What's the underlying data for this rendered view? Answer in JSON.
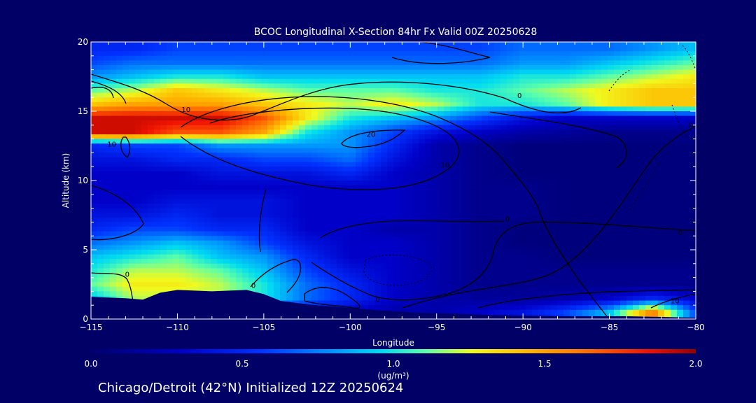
{
  "chart_data": {
    "type": "heatmap",
    "title": "BCOC Longitudinal X-Section 84hr  Fx Valid 00Z 20250628",
    "xlabel": "Longitude",
    "ylabel": "Altitude (km)",
    "xlim": [
      -115,
      -80
    ],
    "ylim": [
      0,
      20
    ],
    "x_ticks": [
      -115,
      -110,
      -105,
      -100,
      -95,
      -90,
      -85,
      -80
    ],
    "x_tick_labels": [
      "−115",
      "−110",
      "−105",
      "−100",
      "−95",
      "−90",
      "−85",
      "−80"
    ],
    "y_ticks": [
      0,
      5,
      10,
      15,
      20
    ],
    "y_tick_labels": [
      "0",
      "5",
      "10",
      "15",
      "20"
    ],
    "grid": false,
    "colorbar": {
      "min": 0.0,
      "max": 2.0,
      "ticks": [
        "0.0",
        "0.5",
        "1.0",
        "1.5",
        "2.0"
      ],
      "unit": "(ug/m³)"
    },
    "value_grid": {
      "x": [
        -115,
        -112.5,
        -110,
        -107.5,
        -105,
        -102.5,
        -100,
        -97.5,
        -95,
        -92.5,
        -90,
        -87.5,
        -85,
        -82.5,
        -80
      ],
      "y": [
        0.5,
        1.5,
        2.5,
        3.5,
        4.5,
        5.5,
        6.5,
        7.5,
        8.5,
        9.5,
        10.5,
        11.5,
        12.5,
        13.5,
        14.5,
        15.5,
        16.5,
        17.5,
        18.5,
        19.5
      ],
      "z": [
        [
          0.3,
          0.4,
          0.5,
          0.5,
          0.5,
          0.4,
          0.3,
          0.2,
          0.2,
          0.3,
          0.4,
          0.6,
          0.9,
          1.6,
          0.6
        ],
        [
          0.9,
          1.2,
          1.2,
          1.2,
          1.0,
          0.7,
          0.5,
          0.3,
          0.2,
          0.15,
          0.15,
          0.2,
          0.3,
          0.5,
          0.3
        ],
        [
          1.1,
          1.3,
          1.3,
          1.2,
          1.0,
          0.7,
          0.5,
          0.3,
          0.2,
          0.1,
          0.1,
          0.1,
          0.1,
          0.1,
          0.1
        ],
        [
          1.0,
          1.2,
          1.2,
          1.1,
          0.9,
          0.6,
          0.4,
          0.3,
          0.2,
          0.1,
          0.1,
          0.1,
          0.1,
          0.1,
          0.1
        ],
        [
          0.9,
          1.0,
          1.1,
          0.9,
          0.8,
          0.5,
          0.3,
          0.3,
          0.2,
          0.1,
          0.1,
          0.05,
          0.05,
          0.05,
          0.05
        ],
        [
          0.7,
          0.8,
          0.9,
          0.8,
          0.6,
          0.4,
          0.3,
          0.3,
          0.2,
          0.1,
          0.05,
          0.05,
          0.05,
          0.05,
          0.05
        ],
        [
          0.5,
          0.6,
          0.6,
          0.5,
          0.5,
          0.3,
          0.3,
          0.2,
          0.2,
          0.1,
          0.05,
          0.05,
          0.05,
          0.05,
          0.05
        ],
        [
          0.4,
          0.4,
          0.5,
          0.4,
          0.4,
          0.3,
          0.3,
          0.3,
          0.2,
          0.1,
          0.1,
          0.05,
          0.05,
          0.05,
          0.05
        ],
        [
          0.3,
          0.3,
          0.4,
          0.4,
          0.4,
          0.3,
          0.3,
          0.3,
          0.2,
          0.1,
          0.1,
          0.05,
          0.05,
          0.05,
          0.05
        ],
        [
          0.3,
          0.3,
          0.3,
          0.3,
          0.3,
          0.3,
          0.3,
          0.3,
          0.2,
          0.1,
          0.1,
          0.05,
          0.05,
          0.05,
          0.05
        ],
        [
          0.3,
          0.3,
          0.3,
          0.4,
          0.4,
          0.4,
          0.5,
          0.3,
          0.2,
          0.1,
          0.05,
          0.05,
          0.05,
          0.05,
          0.05
        ],
        [
          0.4,
          0.4,
          0.5,
          0.5,
          0.6,
          0.6,
          0.7,
          0.4,
          0.2,
          0.1,
          0.05,
          0.05,
          0.05,
          0.05,
          0.05
        ],
        [
          0.5,
          0.6,
          0.6,
          0.8,
          0.8,
          0.8,
          0.8,
          0.5,
          0.2,
          0.1,
          0.05,
          0.05,
          0.05,
          0.05,
          0.05
        ],
        [
          1.9,
          1.9,
          1.7,
          1.7,
          1.5,
          1.0,
          0.8,
          0.6,
          0.4,
          0.3,
          0.2,
          0.15,
          0.1,
          0.1,
          0.1
        ],
        [
          1.9,
          1.9,
          1.9,
          1.9,
          1.7,
          1.3,
          1.0,
          0.9,
          0.8,
          0.6,
          0.4,
          0.3,
          0.3,
          0.3,
          0.3
        ],
        [
          1.4,
          1.5,
          1.5,
          1.5,
          1.4,
          1.3,
          1.2,
          1.3,
          1.2,
          1.0,
          1.0,
          1.1,
          1.3,
          1.4,
          1.4
        ],
        [
          1.1,
          1.2,
          1.4,
          1.3,
          1.2,
          1.1,
          1.1,
          1.1,
          1.0,
          1.0,
          1.1,
          1.2,
          1.3,
          1.4,
          1.4
        ],
        [
          0.8,
          0.9,
          1.0,
          1.0,
          0.9,
          0.9,
          0.9,
          0.9,
          0.9,
          0.9,
          1.0,
          1.0,
          1.1,
          1.2,
          1.3
        ],
        [
          0.6,
          0.7,
          0.7,
          0.7,
          0.7,
          0.7,
          0.7,
          0.7,
          0.7,
          0.7,
          0.8,
          0.8,
          0.9,
          1.0,
          1.1
        ],
        [
          0.5,
          0.5,
          0.6,
          0.6,
          0.6,
          0.6,
          0.6,
          0.6,
          0.6,
          0.6,
          0.7,
          0.7,
          0.7,
          0.8,
          0.9
        ]
      ]
    },
    "contour_labels": [
      {
        "text": "10",
        "lon": -109.5,
        "alt": 15.1
      },
      {
        "text": "20",
        "lon": -98.8,
        "alt": 13.3
      },
      {
        "text": "10",
        "lon": -94.5,
        "alt": 11.1
      },
      {
        "text": "0",
        "lon": -90.2,
        "alt": 16.1
      },
      {
        "text": "10",
        "lon": -113.8,
        "alt": 12.6
      },
      {
        "text": "0",
        "lon": -112.9,
        "alt": 3.2
      },
      {
        "text": "0",
        "lon": -105.6,
        "alt": 2.4
      },
      {
        "text": "0",
        "lon": -98.4,
        "alt": 1.4
      },
      {
        "text": "0",
        "lon": -90.9,
        "alt": 7.2
      },
      {
        "text": "0",
        "lon": -80.9,
        "alt": 6.2
      },
      {
        "text": "10",
        "lon": -81.2,
        "alt": 1.3
      },
      {
        "text": "0",
        "lon": -80.3,
        "alt": 14.0
      }
    ],
    "terrain": {
      "lon": [
        -115,
        -113,
        -112,
        -111,
        -110,
        -108,
        -106,
        -105,
        -104,
        -102,
        -100,
        -98,
        -96,
        -94,
        -92,
        -90,
        -87,
        -84,
        -82,
        -80
      ],
      "alt": [
        1.6,
        1.5,
        1.4,
        1.9,
        2.1,
        2.0,
        2.1,
        1.8,
        1.3,
        1.0,
        0.8,
        0.6,
        0.45,
        0.4,
        0.3,
        0.25,
        0.2,
        0.2,
        0.15,
        0.1
      ]
    }
  },
  "footer": {
    "caption": "Chicago/Detroit (42°N) Initialized 12Z 20250624"
  },
  "colors": {
    "background": "#000066",
    "foreground": "#ffffff",
    "terrain": "#000066",
    "contour": "#000000"
  }
}
